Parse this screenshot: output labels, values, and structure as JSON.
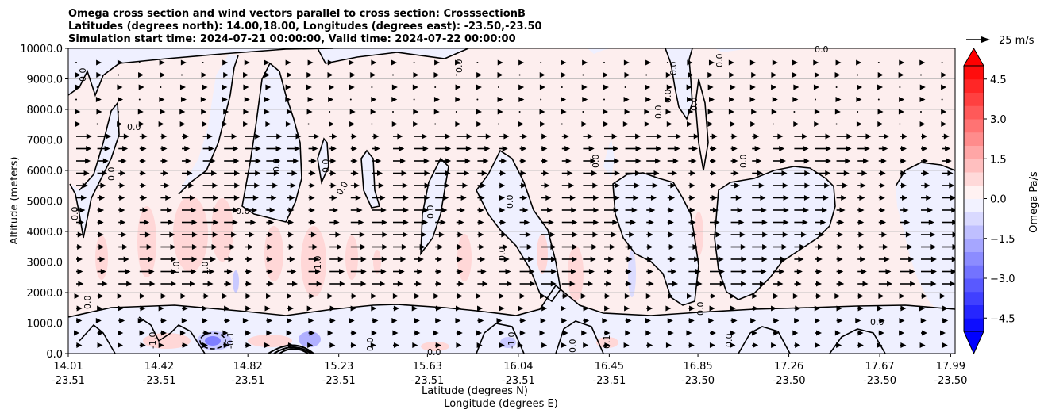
{
  "chart_data": {
    "type": "heatmap",
    "title_lines": [
      "Omega cross section and wind vectors parallel to cross section: CrosssectionB",
      "Latitudes (degrees north): 14.00,18.00, Longitudes (degrees east): -23.50,-23.50",
      "Simulation start time: 2024-07-21 00:00:00, Valid time: 2024-07-22 00:00:00"
    ],
    "ylabel": "Altitude (meters)",
    "xlabel_lat": "Latitude (degrees N)",
    "xlabel_lon": "Longitude (degrees E)",
    "ylim": [
      0,
      10000
    ],
    "yticks": [
      "0.0",
      "1000.0",
      "2000.0",
      "3000.0",
      "4000.0",
      "5000.0",
      "6000.0",
      "7000.0",
      "8000.0",
      "9000.0",
      "10000.0"
    ],
    "xticks": [
      {
        "lat": "14.01",
        "lon": "-23.51",
        "pos": 0.0
      },
      {
        "lat": "14.42",
        "lon": "-23.51",
        "pos": 0.1025
      },
      {
        "lat": "14.82",
        "lon": "-23.51",
        "pos": 0.2025
      },
      {
        "lat": "15.23",
        "lon": "-23.51",
        "pos": 0.305
      },
      {
        "lat": "15.63",
        "lon": "-23.51",
        "pos": 0.405
      },
      {
        "lat": "16.04",
        "lon": "-23.51",
        "pos": 0.5075
      },
      {
        "lat": "16.45",
        "lon": "-23.51",
        "pos": 0.61
      },
      {
        "lat": "16.85",
        "lon": "-23.50",
        "pos": 0.71
      },
      {
        "lat": "17.26",
        "lon": "-23.50",
        "pos": 0.8125
      },
      {
        "lat": "17.67",
        "lon": "-23.50",
        "pos": 0.915
      },
      {
        "lat": "17.99",
        "lon": "-23.50",
        "pos": 0.995
      }
    ],
    "grid": "horizontal",
    "colorbar": {
      "label": "Omega Pa/s",
      "min": -5.0,
      "max": 5.0,
      "levels": [
        -5.0,
        -4.5,
        -4.0,
        -3.5,
        -3.0,
        -2.5,
        -2.0,
        -1.5,
        -1.0,
        -0.5,
        0.0,
        0.5,
        1.0,
        1.5,
        2.0,
        2.5,
        3.0,
        3.5,
        4.0,
        4.5,
        5.0
      ],
      "ticks": [
        "4.5",
        "3.0",
        "1.5",
        "0.0",
        "−1.5",
        "−3.0",
        "−4.5"
      ],
      "extend": "both",
      "colormap": "bwr"
    },
    "quiver_key": "25 m/s",
    "contour_labels": [
      "0.0",
      "1.0",
      "-1.0",
      "-0.1",
      "0.1"
    ],
    "colors": {
      "pos_light": "#fdeeee",
      "pos_mid": "#ffd7d7",
      "neg_light": "#eff0ff",
      "neg_mid": "#c9c9ff",
      "neg_strong": "#7f7fff",
      "grid": "#b0b0b0"
    }
  }
}
